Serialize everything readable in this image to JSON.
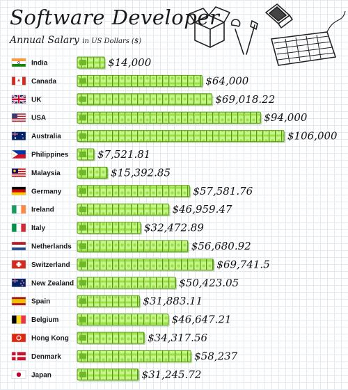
{
  "title": "Software Developer",
  "subtitle": "Annual Salary",
  "subtitle_unit": "in US Dollars ($)",
  "icons": [
    "box-icon",
    "tools-icon",
    "laptop-icon",
    "keyboard-icon"
  ],
  "colors": {
    "money_light": "#b9f06a",
    "money_mid": "#8ed83a",
    "money_dark": "#4f8f14"
  },
  "chart_data": {
    "type": "bar",
    "orientation": "horizontal",
    "categories": [
      "India",
      "Canada",
      "UK",
      "USA",
      "Australia",
      "Philippines",
      "Malaysia",
      "Germany",
      "Ireland",
      "Italy",
      "Netherlands",
      "Switzerland",
      "New Zealand",
      "Spain",
      "Belgium",
      "Hong Kong",
      "Denmark",
      "Japan"
    ],
    "values": [
      14000,
      64000,
      69018.22,
      94000,
      106000,
      7521.81,
      15392.85,
      57581.76,
      46959.47,
      32472.89,
      56680.92,
      69741.5,
      50423.05,
      31883.11,
      46647.21,
      34317.56,
      58237,
      31245.72
    ],
    "value_labels": [
      "$14,000",
      "$64,000",
      "$69,018.22",
      "$94,000",
      "$106,000",
      "$7,521.81",
      "$15,392.85",
      "$57,581.76",
      "$46,959.47",
      "$32,472.89",
      "$56,680.92",
      "$69,741.5",
      "$50,423.05",
      "$31,883.11",
      "$46,647.21",
      "$34,317.56",
      "$58,237",
      "$31,245.72"
    ],
    "flags": [
      "in",
      "ca",
      "uk",
      "us",
      "au",
      "ph",
      "my",
      "de",
      "ie",
      "it",
      "nl",
      "ch",
      "nz",
      "es",
      "be",
      "hk",
      "dk",
      "jp"
    ]
  }
}
